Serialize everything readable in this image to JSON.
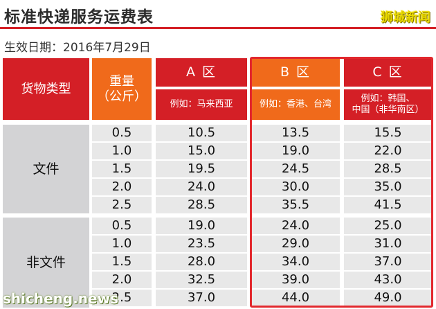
{
  "title": "标准快递服务运费表",
  "brand": "狮城新闻",
  "subtitle": "生效日期：2016年7月29日",
  "watermark": "shicheng.news",
  "header": {
    "cargo_type": "货物类型",
    "weight": "重量\n（公斤）",
    "zone_a": "A 区",
    "zone_b": "B 区",
    "zone_c": "C 区",
    "zone_a_example": "例如：马来西亚",
    "zone_b_example": "例如：香港、台湾",
    "zone_c_example": "例如：韩国、\n中国（非华南区）"
  },
  "sections": [
    {
      "label": "文件",
      "rows": [
        {
          "weight": "0.5",
          "a": "10.5",
          "b": "13.5",
          "c": "15.5"
        },
        {
          "weight": "1.0",
          "a": "15.0",
          "b": "19.0",
          "c": "22.0"
        },
        {
          "weight": "1.5",
          "a": "19.5",
          "b": "24.5",
          "c": "28.5"
        },
        {
          "weight": "2.0",
          "a": "24.0",
          "b": "30.0",
          "c": "35.0"
        },
        {
          "weight": "2.5",
          "a": "28.5",
          "b": "35.5",
          "c": "41.5"
        }
      ]
    },
    {
      "label": "非文件",
      "rows": [
        {
          "weight": "0.5",
          "a": "19.0",
          "b": "24.0",
          "c": "25.0"
        },
        {
          "weight": "1.0",
          "a": "23.5",
          "b": "29.0",
          "c": "31.0"
        },
        {
          "weight": "1.5",
          "a": "28.0",
          "b": "34.0",
          "c": "37.0"
        },
        {
          "weight": "2.0",
          "a": "32.5",
          "b": "39.0",
          "c": "43.0"
        },
        {
          "weight": "2.5",
          "a": "37.0",
          "b": "44.0",
          "c": "49.0"
        }
      ]
    }
  ],
  "colors": {
    "accent_red": "#d41f26",
    "accent_orange": "#f06a1b"
  }
}
